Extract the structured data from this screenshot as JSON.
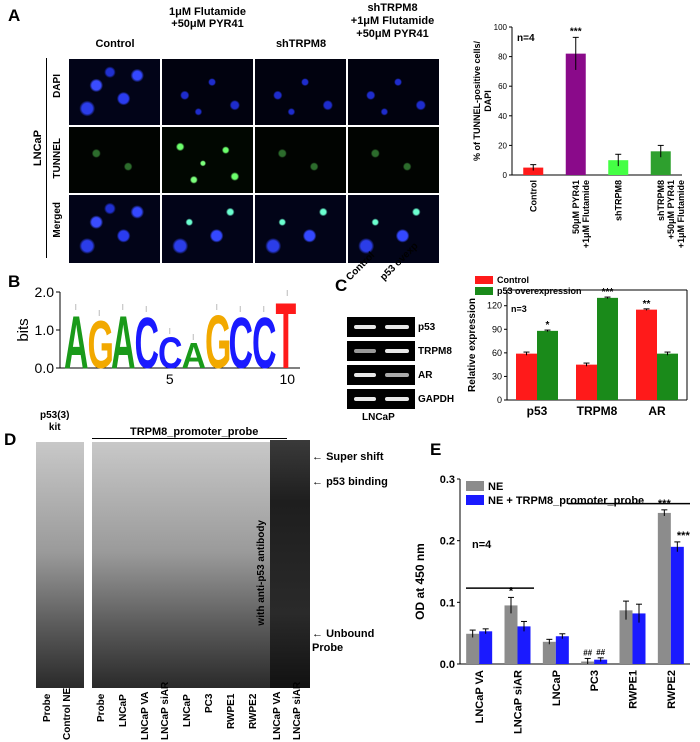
{
  "panelA": {
    "label": "A",
    "cell_line": "LNCaP",
    "columns": [
      "Control",
      "1μM Flutamide\n+50μM PYR41",
      "shTRPM8",
      "shTRPM8\n+1μM Flutamide\n+50μM PYR41"
    ],
    "rows": [
      "DAPI",
      "TUNNEL",
      "Merged"
    ]
  },
  "panelB": {
    "label": "B",
    "ylabel": "bits",
    "yticks": [
      "2.0",
      "1.0",
      "0.0"
    ],
    "xticks": [
      "5",
      "10"
    ],
    "logo_letters": [
      "A",
      "G",
      "A",
      "C",
      "C",
      "A",
      "G",
      "C",
      "C",
      "T"
    ]
  },
  "panelC": {
    "label": "C",
    "lanes": [
      "Control",
      "p53 ovexp"
    ],
    "bands": [
      "p53",
      "TRPM8",
      "AR",
      "GAPDH"
    ],
    "cell_line": "LNCaP"
  },
  "panelD": {
    "label": "D",
    "kit_label": "p53(3)\nkit",
    "probe_label": "TRPM8_promoter_probe",
    "left_lanes": [
      "Probe",
      "Control NE"
    ],
    "middle_lanes": [
      "Probe",
      "LNCaP",
      "LNCaP VA",
      "LNCaP siAR",
      "LNCaP",
      "PC3",
      "RWPE1",
      "RWPE2"
    ],
    "right_lanes": [
      "LNCaP VA",
      "LNCaP siAR"
    ],
    "antibody_label": "with anti-p53 antibody",
    "arrows": [
      "Super shift",
      "p53 binding",
      "Unbound\nProbe"
    ]
  },
  "panelE_label": "E",
  "colors": {
    "red": "#ff1a1a",
    "purple": "#8a0a8a",
    "lightgreen": "#44ff44",
    "green": "#2ea02e",
    "forest": "#1a8a1a",
    "grey": "#8c8c8c",
    "blue": "#1a1aff"
  },
  "chart_data": [
    {
      "type": "bar",
      "id": "A",
      "annotation": "n=4",
      "ylabel": "% of TUNNEL-positive cells/\nDAPI",
      "ylim": [
        0,
        100
      ],
      "yticks": [
        0,
        20,
        40,
        60,
        80,
        100
      ],
      "categories": [
        "Control",
        "50μM PYR41\n+1μM Flutamide",
        "shTRPM8",
        "shTRPM8\n+50μM PYR41\n+1μM Flutamide"
      ],
      "values": [
        5,
        82,
        10,
        16
      ],
      "errors": [
        2,
        11,
        4,
        4
      ],
      "colors": [
        "#ff1a1a",
        "#8a0a8a",
        "#44ff44",
        "#2ea02e"
      ],
      "significance": [
        "",
        "***",
        "",
        ""
      ]
    },
    {
      "type": "bar",
      "id": "C",
      "annotation": "n=3",
      "ylabel": "Relative expression",
      "ylim": [
        0,
        140
      ],
      "yticks": [
        0,
        30,
        60,
        90,
        120
      ],
      "categories": [
        "p53",
        "TRPM8",
        "AR"
      ],
      "series": [
        {
          "name": "Control",
          "values": [
            59,
            45,
            115
          ],
          "errors": [
            2,
            2,
            1
          ],
          "color": "#ff1a1a"
        },
        {
          "name": "p53 overexpression",
          "values": [
            88,
            130,
            59
          ],
          "errors": [
            1,
            1,
            2
          ],
          "color": "#1a8a1a"
        }
      ],
      "significance": [
        "*",
        "***",
        "**"
      ],
      "legend": "top-left"
    },
    {
      "type": "bar",
      "id": "E",
      "annotation": "n=4",
      "ylabel": "OD at 450 nm",
      "ylim": [
        0,
        0.3
      ],
      "yticks": [
        "0.0",
        "0.1",
        "0.2",
        "0.3"
      ],
      "categories": [
        "LNCaP VA",
        "LNCaP siAR",
        "LNCaP",
        "PC3",
        "RWPE1",
        "RWPE2"
      ],
      "series": [
        {
          "name": "NE",
          "values": [
            0.049,
            0.095,
            0.036,
            0.004,
            0.087,
            0.245
          ],
          "errors": [
            0.006,
            0.013,
            0.004,
            0.005,
            0.015,
            0.005
          ],
          "color": "#8c8c8c"
        },
        {
          "name": "NE + TRPM8_promoter_probe",
          "values": [
            0.053,
            0.061,
            0.045,
            0.007,
            0.082,
            0.19
          ],
          "errors": [
            0.004,
            0.008,
            0.004,
            0.003,
            0.015,
            0.008
          ],
          "color": "#1a1aff"
        }
      ],
      "significance_NE": [
        "",
        "*",
        "",
        "##",
        "",
        "***"
      ],
      "significance_probe": [
        "",
        "",
        "",
        "##",
        "",
        "***"
      ],
      "legend": "top-left"
    }
  ]
}
